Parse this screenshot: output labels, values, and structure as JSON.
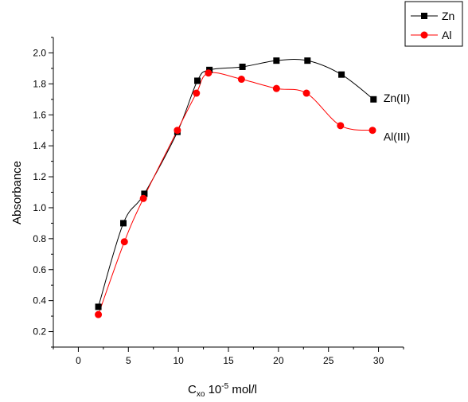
{
  "chart_data": {
    "type": "line",
    "title": "",
    "xlabel_main": "C",
    "xlabel_sub": "xo",
    "xlabel_mid": " 10",
    "xlabel_sup": "-5",
    "xlabel_unit": " mol/l",
    "ylabel": "Absorbance",
    "xlim": [
      -2.5,
      32.5
    ],
    "ylim": [
      0.1,
      2.1
    ],
    "xticks": [
      0,
      5,
      10,
      15,
      20,
      25,
      30
    ],
    "yticks": [
      0.2,
      0.4,
      0.6,
      0.8,
      1.0,
      1.2,
      1.4,
      1.6,
      1.8,
      2.0
    ],
    "ytick_labels": [
      "0.2",
      "0.4",
      "0.6",
      "0.8",
      "1.0",
      "1.2",
      "1.4",
      "1.6",
      "1.8",
      "2.0"
    ],
    "grid": false,
    "legend_position": "top-right",
    "series": [
      {
        "name": "Zn",
        "color": "#000000",
        "marker": "square",
        "x": [
          2.0,
          4.5,
          6.6,
          9.9,
          11.9,
          13.1,
          16.4,
          19.8,
          22.9,
          26.3,
          29.5
        ],
        "y": [
          0.36,
          0.9,
          1.09,
          1.49,
          1.82,
          1.89,
          1.91,
          1.95,
          1.95,
          1.86,
          1.7
        ]
      },
      {
        "name": "Al",
        "color": "#ff0000",
        "marker": "circle",
        "x": [
          2.0,
          4.6,
          6.5,
          9.9,
          11.8,
          13.0,
          16.3,
          19.8,
          22.8,
          26.2,
          29.4
        ],
        "y": [
          0.31,
          0.78,
          1.06,
          1.5,
          1.74,
          1.87,
          1.83,
          1.77,
          1.74,
          1.53,
          1.5
        ]
      }
    ],
    "annotations": [
      {
        "text": "Zn(II)",
        "x": 30.5,
        "y": 1.71
      },
      {
        "text": "Al(III)",
        "x": 30.5,
        "y": 1.46
      }
    ]
  }
}
